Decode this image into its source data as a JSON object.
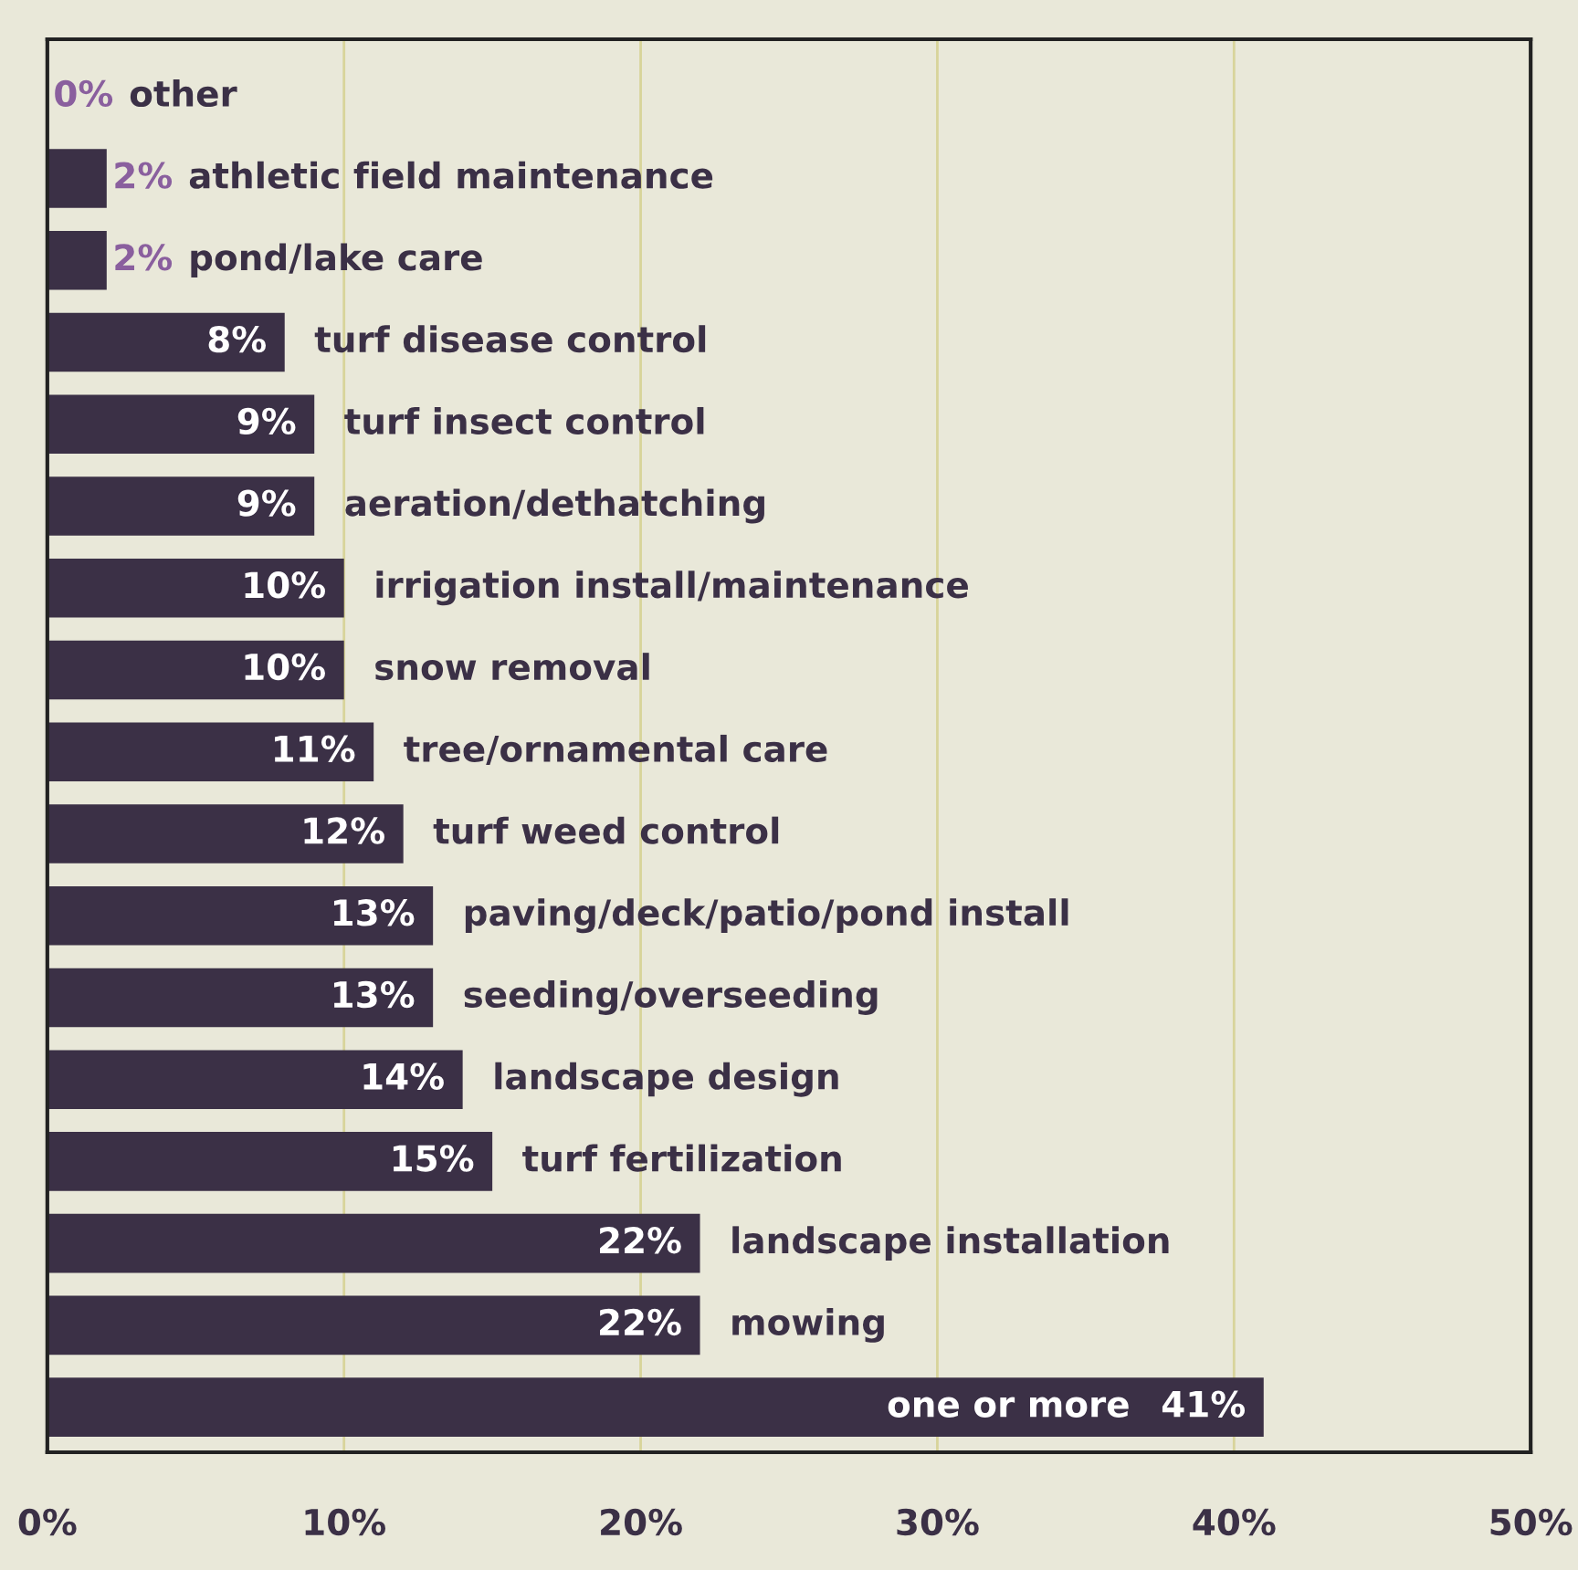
{
  "chart_data": {
    "type": "bar",
    "orientation": "horizontal",
    "categories": [
      "other",
      "athletic field maintenance",
      "pond/lake care",
      "turf disease control",
      "turf insect control",
      "aeration/dethatching",
      "irrigation install/maintenance",
      "snow removal",
      "tree/ornamental care",
      "turf weed control",
      "paving/deck/patio/pond install",
      "seeding/overseeding",
      "landscape design",
      "turf fertilization",
      "landscape installation",
      "mowing",
      "one or more"
    ],
    "values": [
      0,
      2,
      2,
      8,
      9,
      9,
      10,
      10,
      11,
      12,
      13,
      13,
      14,
      15,
      22,
      22,
      41
    ],
    "value_labels": [
      "0%",
      "2%",
      "2%",
      "8%",
      "9%",
      "9%",
      "10%",
      "10%",
      "11%",
      "12%",
      "13%",
      "13%",
      "14%",
      "15%",
      "22%",
      "22%",
      "41%"
    ],
    "color": "#3b3046",
    "xlim": [
      0,
      50
    ],
    "xticks": [
      {
        "value": 0,
        "label": "0%"
      },
      {
        "value": 10,
        "label": "10%"
      },
      {
        "value": 20,
        "label": "20%"
      },
      {
        "value": 30,
        "label": "30%"
      },
      {
        "value": 40,
        "label": "40%"
      },
      {
        "value": 50,
        "label": "50%"
      }
    ],
    "grid": "x",
    "tick_labels": "x"
  }
}
